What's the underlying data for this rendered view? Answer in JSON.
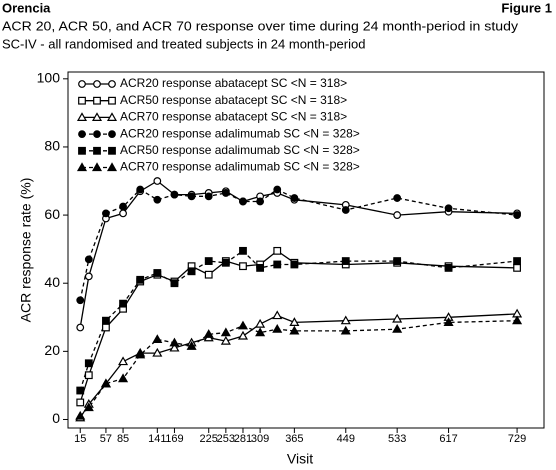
{
  "header": {
    "left": "Orencia",
    "right": "Figure 1"
  },
  "chart_data": {
    "type": "line",
    "title": [
      "ACR 20, ACR 50, and ACR 70 response over time during 24 month-period in study",
      "SC-IV - all randomised and treated subjects in 24 month-period"
    ],
    "x_label": "Visit",
    "y_label": "ACR response rate (%)",
    "x": [
      15,
      29,
      57,
      85,
      113,
      141,
      169,
      197,
      225,
      253,
      281,
      309,
      337,
      365,
      449,
      533,
      617,
      729
    ],
    "xlim": [
      -5,
      773
    ],
    "xticks": [
      15,
      57,
      85,
      141,
      169,
      225,
      253,
      281,
      309,
      365,
      449,
      533,
      617,
      729
    ],
    "ylim": [
      -2.5,
      102
    ],
    "yticks": [
      0,
      20,
      40,
      60,
      80,
      100
    ],
    "legend_position": "upper left",
    "series": [
      {
        "name": "ACR20 response abatacept SC <N = 318>",
        "color": "#000000",
        "line_style": "solid",
        "marker": "circle",
        "filled": false,
        "values": [
          27,
          42,
          59,
          60.5,
          67,
          70,
          66,
          66,
          66.5,
          67,
          64,
          65.5,
          66.5,
          64.5,
          63,
          60,
          61,
          60.5
        ]
      },
      {
        "name": "ACR50 response abatacept SC <N = 318>",
        "color": "#000000",
        "line_style": "solid",
        "marker": "square",
        "filled": false,
        "values": [
          5,
          13,
          27,
          32.5,
          40.5,
          42.5,
          40.5,
          45,
          42.5,
          46.5,
          45,
          45.5,
          49.5,
          46,
          45.5,
          46,
          45,
          44.5
        ]
      },
      {
        "name": "ACR70 response abatacept SC <N = 318>",
        "color": "#000000",
        "line_style": "solid",
        "marker": "triangle",
        "filled": false,
        "values": [
          0.5,
          4.5,
          10.5,
          17,
          19.5,
          19.5,
          21,
          22.5,
          24,
          23,
          24.5,
          28,
          30.5,
          28.5,
          29,
          29.5,
          30,
          31
        ]
      },
      {
        "name": "ACR20 response adalimumab SC <N = 328>",
        "color": "#000000",
        "line_style": "dashed",
        "marker": "circle",
        "filled": true,
        "values": [
          35,
          47,
          60.5,
          62.5,
          67.5,
          64.5,
          66,
          65.5,
          65.5,
          66.5,
          64,
          64,
          67.5,
          65,
          61.5,
          65,
          62,
          60
        ]
      },
      {
        "name": "ACR50 response adalimumab SC <N = 328>",
        "color": "#000000",
        "line_style": "dashed",
        "marker": "square",
        "filled": true,
        "values": [
          8.5,
          16.5,
          29,
          34,
          41,
          43,
          40,
          43.5,
          46.5,
          46,
          49.5,
          44.5,
          45.5,
          45.5,
          46.5,
          46.5,
          44.5,
          46.5
        ]
      },
      {
        "name": "ACR70 response adalimumab SC <N = 328>",
        "color": "#000000",
        "line_style": "dashed",
        "marker": "triangle",
        "filled": true,
        "values": [
          1,
          3.5,
          10.5,
          12,
          19,
          23.5,
          22.5,
          21.5,
          25,
          25.5,
          27.5,
          25.5,
          26.5,
          26,
          26,
          26.5,
          28.5,
          29
        ]
      }
    ]
  }
}
